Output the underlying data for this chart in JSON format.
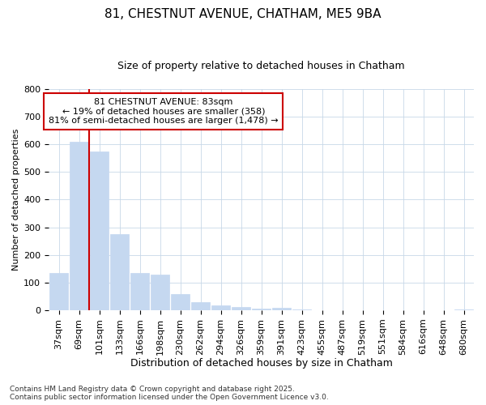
{
  "title1": "81, CHESTNUT AVENUE, CHATHAM, ME5 9BA",
  "title2": "Size of property relative to detached houses in Chatham",
  "xlabel": "Distribution of detached houses by size in Chatham",
  "ylabel": "Number of detached properties",
  "footer": "Contains HM Land Registry data © Crown copyright and database right 2025.\nContains public sector information licensed under the Open Government Licence v3.0.",
  "categories": [
    "37sqm",
    "69sqm",
    "101sqm",
    "133sqm",
    "166sqm",
    "198sqm",
    "230sqm",
    "262sqm",
    "294sqm",
    "326sqm",
    "359sqm",
    "391sqm",
    "423sqm",
    "455sqm",
    "487sqm",
    "519sqm",
    "551sqm",
    "584sqm",
    "616sqm",
    "648sqm",
    "680sqm"
  ],
  "values": [
    135,
    610,
    575,
    275,
    135,
    130,
    58,
    30,
    17,
    12,
    5,
    8,
    2,
    0,
    0,
    0,
    0,
    0,
    0,
    0,
    3
  ],
  "bar_color": "#c5d8f0",
  "bar_edge_color": "#c5d8f0",
  "ylim": [
    0,
    800
  ],
  "yticks": [
    0,
    100,
    200,
    300,
    400,
    500,
    600,
    700,
    800
  ],
  "property_label": "81 CHESTNUT AVENUE: 83sqm",
  "annotation_line1": "← 19% of detached houses are smaller (358)",
  "annotation_line2": "81% of semi-detached houses are larger (1,478) →",
  "vline_position": 1.5,
  "box_color": "#cc0000",
  "background_color": "#ffffff",
  "grid_color": "#c8d8e8",
  "title1_fontsize": 11,
  "title2_fontsize": 9,
  "ylabel_fontsize": 8,
  "xlabel_fontsize": 9,
  "tick_fontsize": 8,
  "annot_fontsize": 8,
  "footer_fontsize": 6.5
}
